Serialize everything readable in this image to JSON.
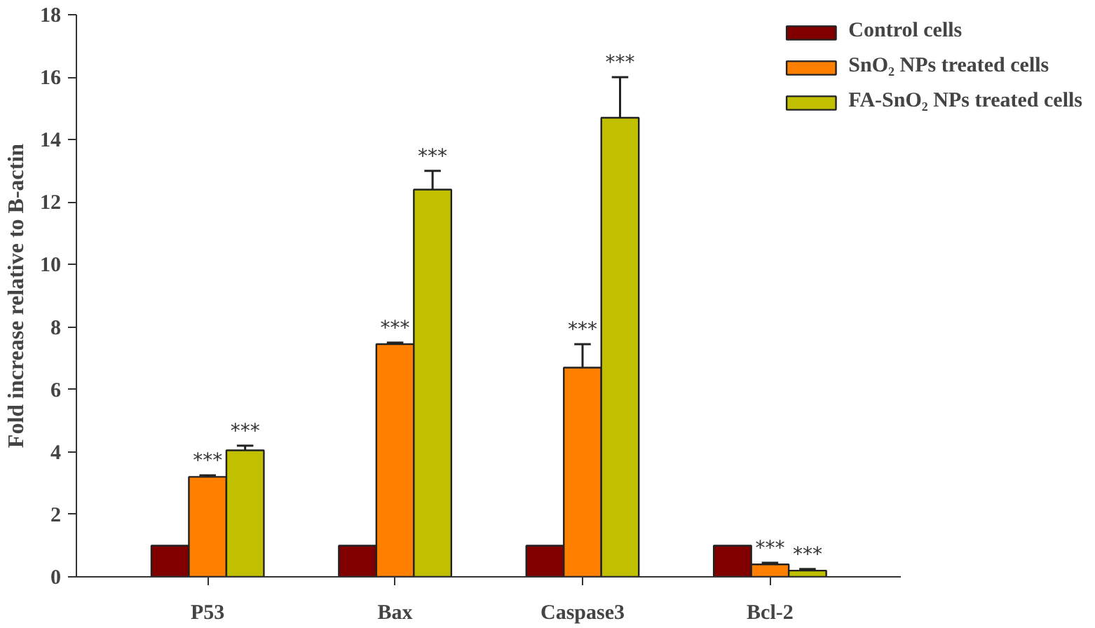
{
  "chart_data": {
    "type": "bar",
    "ylabel": "Fold increase relative to B-actin",
    "categories": [
      "P53",
      "Bax",
      "Caspase3",
      "Bcl-2"
    ],
    "series": [
      {
        "name": "Control cells",
        "color": "#800000",
        "values": [
          1.0,
          1.0,
          1.0,
          1.0
        ]
      },
      {
        "name": "SnO₂ NPs treated cells",
        "color": "#ff8000",
        "values": [
          3.2,
          7.45,
          6.7,
          0.4
        ],
        "errors": [
          0.05,
          0.05,
          0.75,
          0.05
        ],
        "value_labels": [
          "***",
          "***",
          "***",
          "***"
        ]
      },
      {
        "name": "FA-SnO₂ NPs treated cells",
        "color": "#c0c000",
        "values": [
          4.05,
          12.4,
          14.7,
          0.2
        ],
        "errors": [
          0.15,
          0.6,
          1.3,
          0.05
        ],
        "value_labels": [
          "***",
          "***",
          "***",
          "***"
        ]
      }
    ],
    "ylim": [
      0,
      18
    ],
    "yticks": [
      0,
      2,
      4,
      6,
      8,
      10,
      12,
      14,
      16,
      18
    ],
    "grid": false,
    "legend": "top right"
  }
}
